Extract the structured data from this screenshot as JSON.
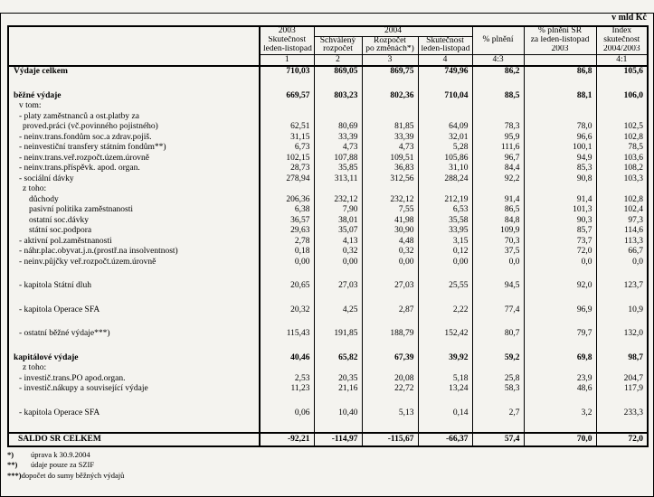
{
  "unit_label": "v mld Kč",
  "table": {
    "header": {
      "col1": [
        "2003",
        "Skutečnost",
        "leden-listopad"
      ],
      "group2004": "2004",
      "col2": [
        "Schválený",
        "rozpočet"
      ],
      "col3": [
        "Rozpočet",
        "po změnách*)"
      ],
      "col4": [
        "Skutečnost",
        "leden-listopad"
      ],
      "col5": "% plnění",
      "col6": [
        "% plnění SR",
        "za leden-listopad",
        "2003"
      ],
      "col7": [
        "Index",
        "skutečnost",
        "2004/2003"
      ],
      "numbering": [
        "1",
        "2",
        "3",
        "4",
        "4:3",
        "",
        "4:1"
      ]
    },
    "rows": [
      {
        "label": "Výdaje celkem",
        "indent": 0,
        "bold": true,
        "values": [
          "710,03",
          "869,05",
          "869,75",
          "749,96",
          "86,2",
          "86,8",
          "105,6"
        ]
      },
      {
        "spacer": true
      },
      {
        "label": "běžné výdaje",
        "indent": 0,
        "bold": true,
        "values": [
          "669,57",
          "803,23",
          "802,36",
          "710,04",
          "88,5",
          "88,1",
          "106,0"
        ]
      },
      {
        "label": "v tom:",
        "indent": 1
      },
      {
        "label": "- platy zaměstnanců a ost.platby za",
        "indent": 1
      },
      {
        "label": "proved.práci (vč.povinného pojistného)",
        "indent": 2,
        "values": [
          "62,51",
          "80,69",
          "81,85",
          "64,09",
          "78,3",
          "78,0",
          "102,5"
        ]
      },
      {
        "label": "- neinv.trans.fondům soc.a zdrav.pojiš.",
        "indent": 1,
        "values": [
          "31,15",
          "33,39",
          "33,39",
          "32,01",
          "95,9",
          "96,6",
          "102,8"
        ]
      },
      {
        "label": "- neinvestiční transfery státním fondům**)",
        "indent": 1,
        "values": [
          "6,73",
          "4,73",
          "4,73",
          "5,28",
          "111,6",
          "100,1",
          "78,5"
        ]
      },
      {
        "label": "- neinv.trans.veř.rozpočt.územ.úrovně",
        "indent": 1,
        "values": [
          "102,15",
          "107,88",
          "109,51",
          "105,86",
          "96,7",
          "94,9",
          "103,6"
        ]
      },
      {
        "label": "- neinv.trans.příspěvk. apod. organ.",
        "indent": 1,
        "values": [
          "28,73",
          "35,85",
          "36,83",
          "31,10",
          "84,4",
          "85,3",
          "108,2"
        ]
      },
      {
        "label": "- sociální dávky",
        "indent": 1,
        "values": [
          "278,94",
          "313,11",
          "312,56",
          "288,24",
          "92,2",
          "90,8",
          "103,3"
        ]
      },
      {
        "label": "z toho:",
        "indent": 2
      },
      {
        "label": "důchody",
        "indent": 3,
        "values": [
          "206,36",
          "232,12",
          "232,12",
          "212,19",
          "91,4",
          "91,4",
          "102,8"
        ]
      },
      {
        "label": "pasivní politika zaměstnanosti",
        "indent": 3,
        "values": [
          "6,38",
          "7,90",
          "7,55",
          "6,53",
          "86,5",
          "101,3",
          "102,4"
        ]
      },
      {
        "label": "ostatní soc.dávky",
        "indent": 3,
        "values": [
          "36,57",
          "38,01",
          "41,98",
          "35,58",
          "84,8",
          "90,3",
          "97,3"
        ]
      },
      {
        "label": "státní soc.podpora",
        "indent": 3,
        "values": [
          "29,63",
          "35,07",
          "30,90",
          "33,95",
          "109,9",
          "85,7",
          "114,6"
        ]
      },
      {
        "label": "- aktivní pol.zaměstnanosti",
        "indent": 1,
        "values": [
          "2,78",
          "4,13",
          "4,48",
          "3,15",
          "70,3",
          "73,7",
          "113,3"
        ]
      },
      {
        "label": "- náhr.plac.obyvat.j.n.(prostř.na insolventnost)",
        "indent": 1,
        "values": [
          "0,18",
          "0,32",
          "0,32",
          "0,12",
          "37,5",
          "72,0",
          "66,7"
        ]
      },
      {
        "label": "- neinv.půjčky veř.rozpočt.územ.úrovně",
        "indent": 1,
        "values": [
          "0,00",
          "0,00",
          "0,00",
          "0,00",
          "0,0",
          "0,0",
          "0,0"
        ]
      },
      {
        "spacer": true
      },
      {
        "label": "- kapitola Státní dluh",
        "indent": 1,
        "values": [
          "20,65",
          "27,03",
          "27,03",
          "25,55",
          "94,5",
          "92,0",
          "123,7"
        ]
      },
      {
        "spacer": true
      },
      {
        "label": "- kapitola Operace SFA",
        "indent": 1,
        "values": [
          "20,32",
          "4,25",
          "2,87",
          "2,22",
          "77,4",
          "96,9",
          "10,9"
        ]
      },
      {
        "spacer": true
      },
      {
        "label": "- ostatní běžné výdaje***)",
        "indent": 1,
        "values": [
          "115,43",
          "191,85",
          "188,79",
          "152,42",
          "80,7",
          "79,7",
          "132,0"
        ]
      },
      {
        "spacer": true
      },
      {
        "label": "kapitálové výdaje",
        "indent": 0,
        "bold": true,
        "values": [
          "40,46",
          "65,82",
          "67,39",
          "39,92",
          "59,2",
          "69,8",
          "98,7"
        ]
      },
      {
        "label": "z toho:",
        "indent": 2
      },
      {
        "label": "- investič.trans.PO apod.organ.",
        "indent": 1,
        "values": [
          "2,53",
          "20,35",
          "20,08",
          "5,18",
          "25,8",
          "23,9",
          "204,7"
        ]
      },
      {
        "label": "- investič.nákupy a související výdaje",
        "indent": 1,
        "values": [
          "11,23",
          "21,16",
          "22,72",
          "13,24",
          "58,3",
          "48,6",
          "117,9"
        ]
      },
      {
        "spacer": true
      },
      {
        "label": "- kapitola Operace SFA",
        "indent": 1,
        "values": [
          "0,06",
          "10,40",
          "5,13",
          "0,14",
          "2,7",
          "3,2",
          "233,3"
        ]
      },
      {
        "spacer": true
      }
    ],
    "saldo": {
      "label": "SALDO SR CELKEM",
      "values": [
        "-92,21",
        "-114,97",
        "-115,67",
        "-66,37",
        "57,4",
        "70,0",
        "72,0"
      ]
    }
  },
  "footnotes": [
    {
      "marker": "*)",
      "text": "úprava k 30.9.2004"
    },
    {
      "marker": "**)",
      "text": "údaje pouze za SZIF"
    },
    {
      "marker": "***)",
      "text": "dopočet do sumy běžných výdajů"
    }
  ]
}
